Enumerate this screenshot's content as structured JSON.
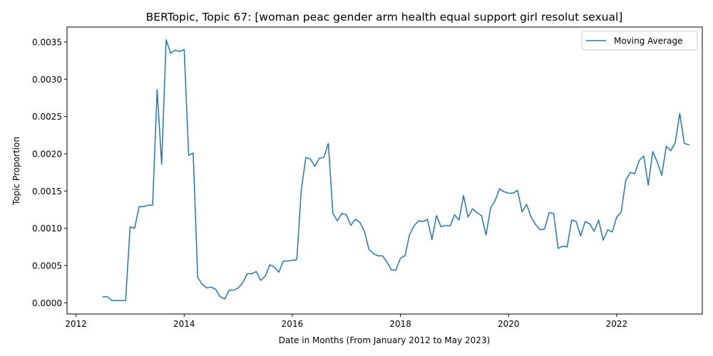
{
  "chart_data": {
    "type": "line",
    "title": "BERTopic, Topic 67: [woman peac gender arm health equal support girl resolut sexual]",
    "xlabel": "Date in Months (From January 2012 to May 2023)",
    "ylabel": "Topic Proportion",
    "xlim": [
      "2011-11-01",
      "2023-08-01"
    ],
    "ylim": [
      -0.00015,
      0.0037
    ],
    "x_ticks": [
      "2012",
      "2014",
      "2016",
      "2018",
      "2020",
      "2022"
    ],
    "y_ticks": [
      "0.0000",
      "0.0005",
      "0.0010",
      "0.0015",
      "0.0020",
      "0.0025",
      "0.0030",
      "0.0035"
    ],
    "legend": {
      "position": "upper-right",
      "entries": [
        "Moving Average"
      ]
    },
    "grid": false,
    "series": [
      {
        "name": "Moving Average",
        "color": "#1f77b4",
        "points": [
          [
            "2012-07",
            8e-05
          ],
          [
            "2012-08",
            8e-05
          ],
          [
            "2012-09",
            3e-05
          ],
          [
            "2012-10",
            3e-05
          ],
          [
            "2012-11",
            3e-05
          ],
          [
            "2012-12",
            3e-05
          ],
          [
            "2013-01",
            0.00102
          ],
          [
            "2013-02",
            0.001
          ],
          [
            "2013-03",
            0.00129
          ],
          [
            "2013-04",
            0.00129
          ],
          [
            "2013-05",
            0.00131
          ],
          [
            "2013-06",
            0.00131
          ],
          [
            "2013-07",
            0.00286
          ],
          [
            "2013-08",
            0.00186
          ],
          [
            "2013-09",
            0.00353
          ],
          [
            "2013-10",
            0.00335
          ],
          [
            "2013-11",
            0.00339
          ],
          [
            "2013-12",
            0.00337
          ],
          [
            "2014-01",
            0.0034
          ],
          [
            "2014-02",
            0.00198
          ],
          [
            "2014-03",
            0.00201
          ],
          [
            "2014-04",
            0.00034
          ],
          [
            "2014-05",
            0.00025
          ],
          [
            "2014-06",
            0.0002
          ],
          [
            "2014-07",
            0.00021
          ],
          [
            "2014-08",
            0.00018
          ],
          [
            "2014-09",
            8e-05
          ],
          [
            "2014-10",
            5e-05
          ],
          [
            "2014-11",
            0.00017
          ],
          [
            "2014-12",
            0.00017
          ],
          [
            "2015-01",
            0.0002
          ],
          [
            "2015-02",
            0.00027
          ],
          [
            "2015-03",
            0.00039
          ],
          [
            "2015-04",
            0.00039
          ],
          [
            "2015-05",
            0.00042
          ],
          [
            "2015-06",
            0.0003
          ],
          [
            "2015-07",
            0.00036
          ],
          [
            "2015-08",
            0.00051
          ],
          [
            "2015-09",
            0.00048
          ],
          [
            "2015-10",
            0.00041
          ],
          [
            "2015-11",
            0.00056
          ],
          [
            "2015-12",
            0.00056
          ],
          [
            "2016-01",
            0.00057
          ],
          [
            "2016-02",
            0.00058
          ],
          [
            "2016-03",
            0.00152
          ],
          [
            "2016-04",
            0.00195
          ],
          [
            "2016-05",
            0.00193
          ],
          [
            "2016-06",
            0.00183
          ],
          [
            "2016-07",
            0.00194
          ],
          [
            "2016-08",
            0.00195
          ],
          [
            "2016-09",
            0.00214
          ],
          [
            "2016-10",
            0.0012
          ],
          [
            "2016-11",
            0.0011
          ],
          [
            "2016-12",
            0.0012
          ],
          [
            "2017-01",
            0.00118
          ],
          [
            "2017-02",
            0.00104
          ],
          [
            "2017-03",
            0.00112
          ],
          [
            "2017-04",
            0.00108
          ],
          [
            "2017-05",
            0.00096
          ],
          [
            "2017-06",
            0.00072
          ],
          [
            "2017-07",
            0.00066
          ],
          [
            "2017-08",
            0.00063
          ],
          [
            "2017-09",
            0.00063
          ],
          [
            "2017-10",
            0.00055
          ],
          [
            "2017-11",
            0.00044
          ],
          [
            "2017-12",
            0.00044
          ],
          [
            "2018-01",
            0.0006
          ],
          [
            "2018-02",
            0.00063
          ],
          [
            "2018-03",
            0.00091
          ],
          [
            "2018-04",
            0.00103
          ],
          [
            "2018-05",
            0.0011
          ],
          [
            "2018-06",
            0.00109
          ],
          [
            "2018-07",
            0.00112
          ],
          [
            "2018-08",
            0.00085
          ],
          [
            "2018-09",
            0.00117
          ],
          [
            "2018-10",
            0.00102
          ],
          [
            "2018-11",
            0.00104
          ],
          [
            "2018-12",
            0.00103
          ],
          [
            "2019-01",
            0.00118
          ],
          [
            "2019-02",
            0.00111
          ],
          [
            "2019-03",
            0.00144
          ],
          [
            "2019-04",
            0.00115
          ],
          [
            "2019-05",
            0.00126
          ],
          [
            "2019-06",
            0.00121
          ],
          [
            "2019-07",
            0.00117
          ],
          [
            "2019-08",
            0.00091
          ],
          [
            "2019-09",
            0.00127
          ],
          [
            "2019-10",
            0.00137
          ],
          [
            "2019-11",
            0.00153
          ],
          [
            "2019-12",
            0.00149
          ],
          [
            "2020-01",
            0.00147
          ],
          [
            "2020-02",
            0.00147
          ],
          [
            "2020-03",
            0.00151
          ],
          [
            "2020-04",
            0.00122
          ],
          [
            "2020-05",
            0.00132
          ],
          [
            "2020-06",
            0.00115
          ],
          [
            "2020-07",
            0.00105
          ],
          [
            "2020-08",
            0.00098
          ],
          [
            "2020-09",
            0.00099
          ],
          [
            "2020-10",
            0.00121
          ],
          [
            "2020-11",
            0.0012
          ],
          [
            "2020-12",
            0.00073
          ],
          [
            "2021-01",
            0.00076
          ],
          [
            "2021-02",
            0.00075
          ],
          [
            "2021-03",
            0.00111
          ],
          [
            "2021-04",
            0.00109
          ],
          [
            "2021-05",
            0.0009
          ],
          [
            "2021-06",
            0.00109
          ],
          [
            "2021-07",
            0.00106
          ],
          [
            "2021-08",
            0.00096
          ],
          [
            "2021-09",
            0.00111
          ],
          [
            "2021-10",
            0.00084
          ],
          [
            "2021-11",
            0.00098
          ],
          [
            "2021-12",
            0.00095
          ],
          [
            "2022-01",
            0.00115
          ],
          [
            "2022-02",
            0.00122
          ],
          [
            "2022-03",
            0.00164
          ],
          [
            "2022-04",
            0.00175
          ],
          [
            "2022-05",
            0.00173
          ],
          [
            "2022-06",
            0.00191
          ],
          [
            "2022-07",
            0.00197
          ],
          [
            "2022-08",
            0.00158
          ],
          [
            "2022-09",
            0.00203
          ],
          [
            "2022-10",
            0.00189
          ],
          [
            "2022-11",
            0.00171
          ],
          [
            "2022-12",
            0.0021
          ],
          [
            "2023-01",
            0.00204
          ],
          [
            "2023-02",
            0.00215
          ],
          [
            "2023-03",
            0.00254
          ],
          [
            "2023-04",
            0.00214
          ],
          [
            "2023-05",
            0.00212
          ]
        ]
      }
    ]
  }
}
